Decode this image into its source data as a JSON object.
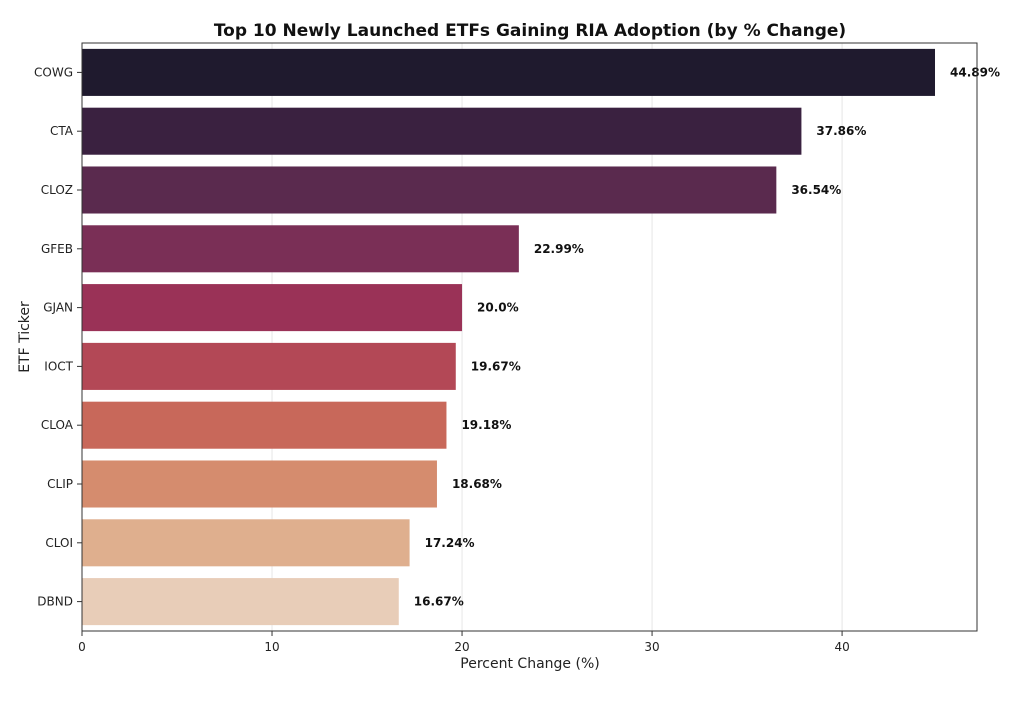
{
  "chart_data": {
    "type": "bar",
    "orientation": "horizontal",
    "title": "Top 10 Newly Launched ETFs Gaining RIA Adoption (by % Change)",
    "xlabel": "Percent Change (%)",
    "ylabel": "ETF Ticker",
    "xlim": [
      0,
      47.1
    ],
    "xticks": [
      0,
      10,
      20,
      30,
      40
    ],
    "grid": true,
    "categories": [
      "COWG",
      "CTA",
      "CLOZ",
      "GFEB",
      "GJAN",
      "IOCT",
      "CLOA",
      "CLIP",
      "CLOI",
      "DBND"
    ],
    "values": [
      44.89,
      37.86,
      36.54,
      22.99,
      20.0,
      19.67,
      19.18,
      18.68,
      17.24,
      16.67
    ],
    "value_labels": [
      "44.89%",
      "37.86%",
      "36.54%",
      "22.99%",
      "20.0%",
      "19.67%",
      "19.18%",
      "18.68%",
      "17.24%",
      "16.67%"
    ],
    "colors": [
      "#1f1a2e",
      "#3a2140",
      "#5a2a4e",
      "#7a2f56",
      "#9a3257",
      "#b34856",
      "#c8685a",
      "#d58c6e",
      "#dfaf8e",
      "#e8cdb8"
    ]
  }
}
